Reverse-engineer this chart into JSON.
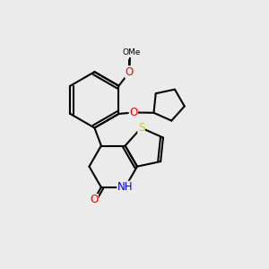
{
  "background_color": "#ebebeb",
  "bond_color": "#000000",
  "atom_colors": {
    "O": "#ff0000",
    "N": "#0000ff",
    "S": "#cccc00",
    "C": "#000000",
    "H": "#000000"
  },
  "figsize": [
    3.0,
    3.0
  ],
  "dpi": 100,
  "lw": 1.5,
  "fontsize": 8.5
}
